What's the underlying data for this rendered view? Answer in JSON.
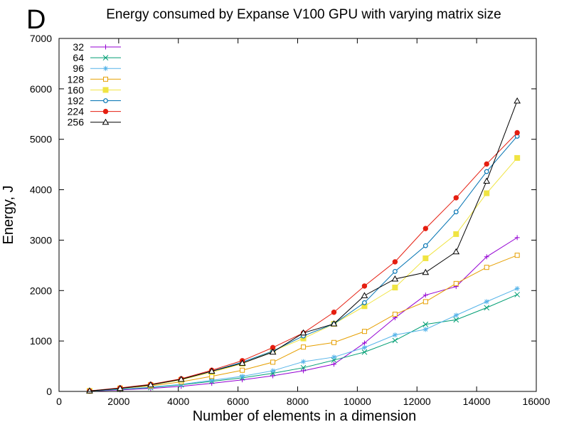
{
  "panel_label": "D",
  "chart_data": {
    "type": "line",
    "title": "Energy consumed by Expanse V100 GPU with varying matrix size",
    "xlabel": "Number of elements in a dimension",
    "ylabel": "Energy, J",
    "xlim": [
      0,
      16000
    ],
    "ylim": [
      0,
      7000
    ],
    "xticks": [
      0,
      2000,
      4000,
      6000,
      8000,
      10000,
      12000,
      14000,
      16000
    ],
    "yticks": [
      0,
      1000,
      2000,
      3000,
      4000,
      5000,
      6000,
      7000
    ],
    "grid": false,
    "legend_position": "top-left",
    "x": [
      1024,
      2048,
      3072,
      4096,
      5120,
      6144,
      7168,
      8192,
      9216,
      10240,
      11264,
      12288,
      13312,
      14336,
      15360
    ],
    "series": [
      {
        "name": "32",
        "color": "#9400d3",
        "marker": "plus",
        "values": [
          5,
          30,
          60,
          100,
          160,
          230,
          310,
          410,
          540,
          960,
          1460,
          1910,
          2080,
          2670,
          3050
        ]
      },
      {
        "name": "64",
        "color": "#009e73",
        "marker": "cross",
        "values": [
          8,
          40,
          75,
          130,
          200,
          270,
          360,
          470,
          620,
          780,
          1010,
          1330,
          1420,
          1660,
          1920
        ]
      },
      {
        "name": "96",
        "color": "#56b4e9",
        "marker": "asterisk",
        "values": [
          8,
          45,
          85,
          140,
          220,
          300,
          410,
          590,
          680,
          870,
          1120,
          1230,
          1510,
          1780,
          2040
        ]
      },
      {
        "name": "128",
        "color": "#e69f00",
        "marker": "open-square",
        "values": [
          10,
          60,
          110,
          190,
          300,
          420,
          580,
          880,
          970,
          1190,
          1530,
          1780,
          2140,
          2460,
          2700
        ]
      },
      {
        "name": "160",
        "color": "#f0e442",
        "marker": "filled-square",
        "values": [
          10,
          60,
          125,
          230,
          380,
          550,
          800,
          1050,
          1340,
          1690,
          2060,
          2640,
          3120,
          3930,
          4630
        ]
      },
      {
        "name": "192",
        "color": "#0072b2",
        "marker": "open-circle",
        "values": [
          10,
          60,
          130,
          240,
          400,
          580,
          800,
          1100,
          1340,
          1760,
          2380,
          2890,
          3560,
          4360,
          5060
        ]
      },
      {
        "name": "224",
        "color": "#e51e10",
        "marker": "filled-circle",
        "values": [
          10,
          70,
          140,
          250,
          420,
          610,
          870,
          1160,
          1570,
          2090,
          2570,
          3230,
          3840,
          4510,
          5130
        ]
      },
      {
        "name": "256",
        "color": "#000000",
        "marker": "open-triangle",
        "values": [
          10,
          60,
          130,
          240,
          400,
          560,
          780,
          1160,
          1340,
          1900,
          2230,
          2360,
          2770,
          4170,
          5760
        ]
      }
    ]
  }
}
